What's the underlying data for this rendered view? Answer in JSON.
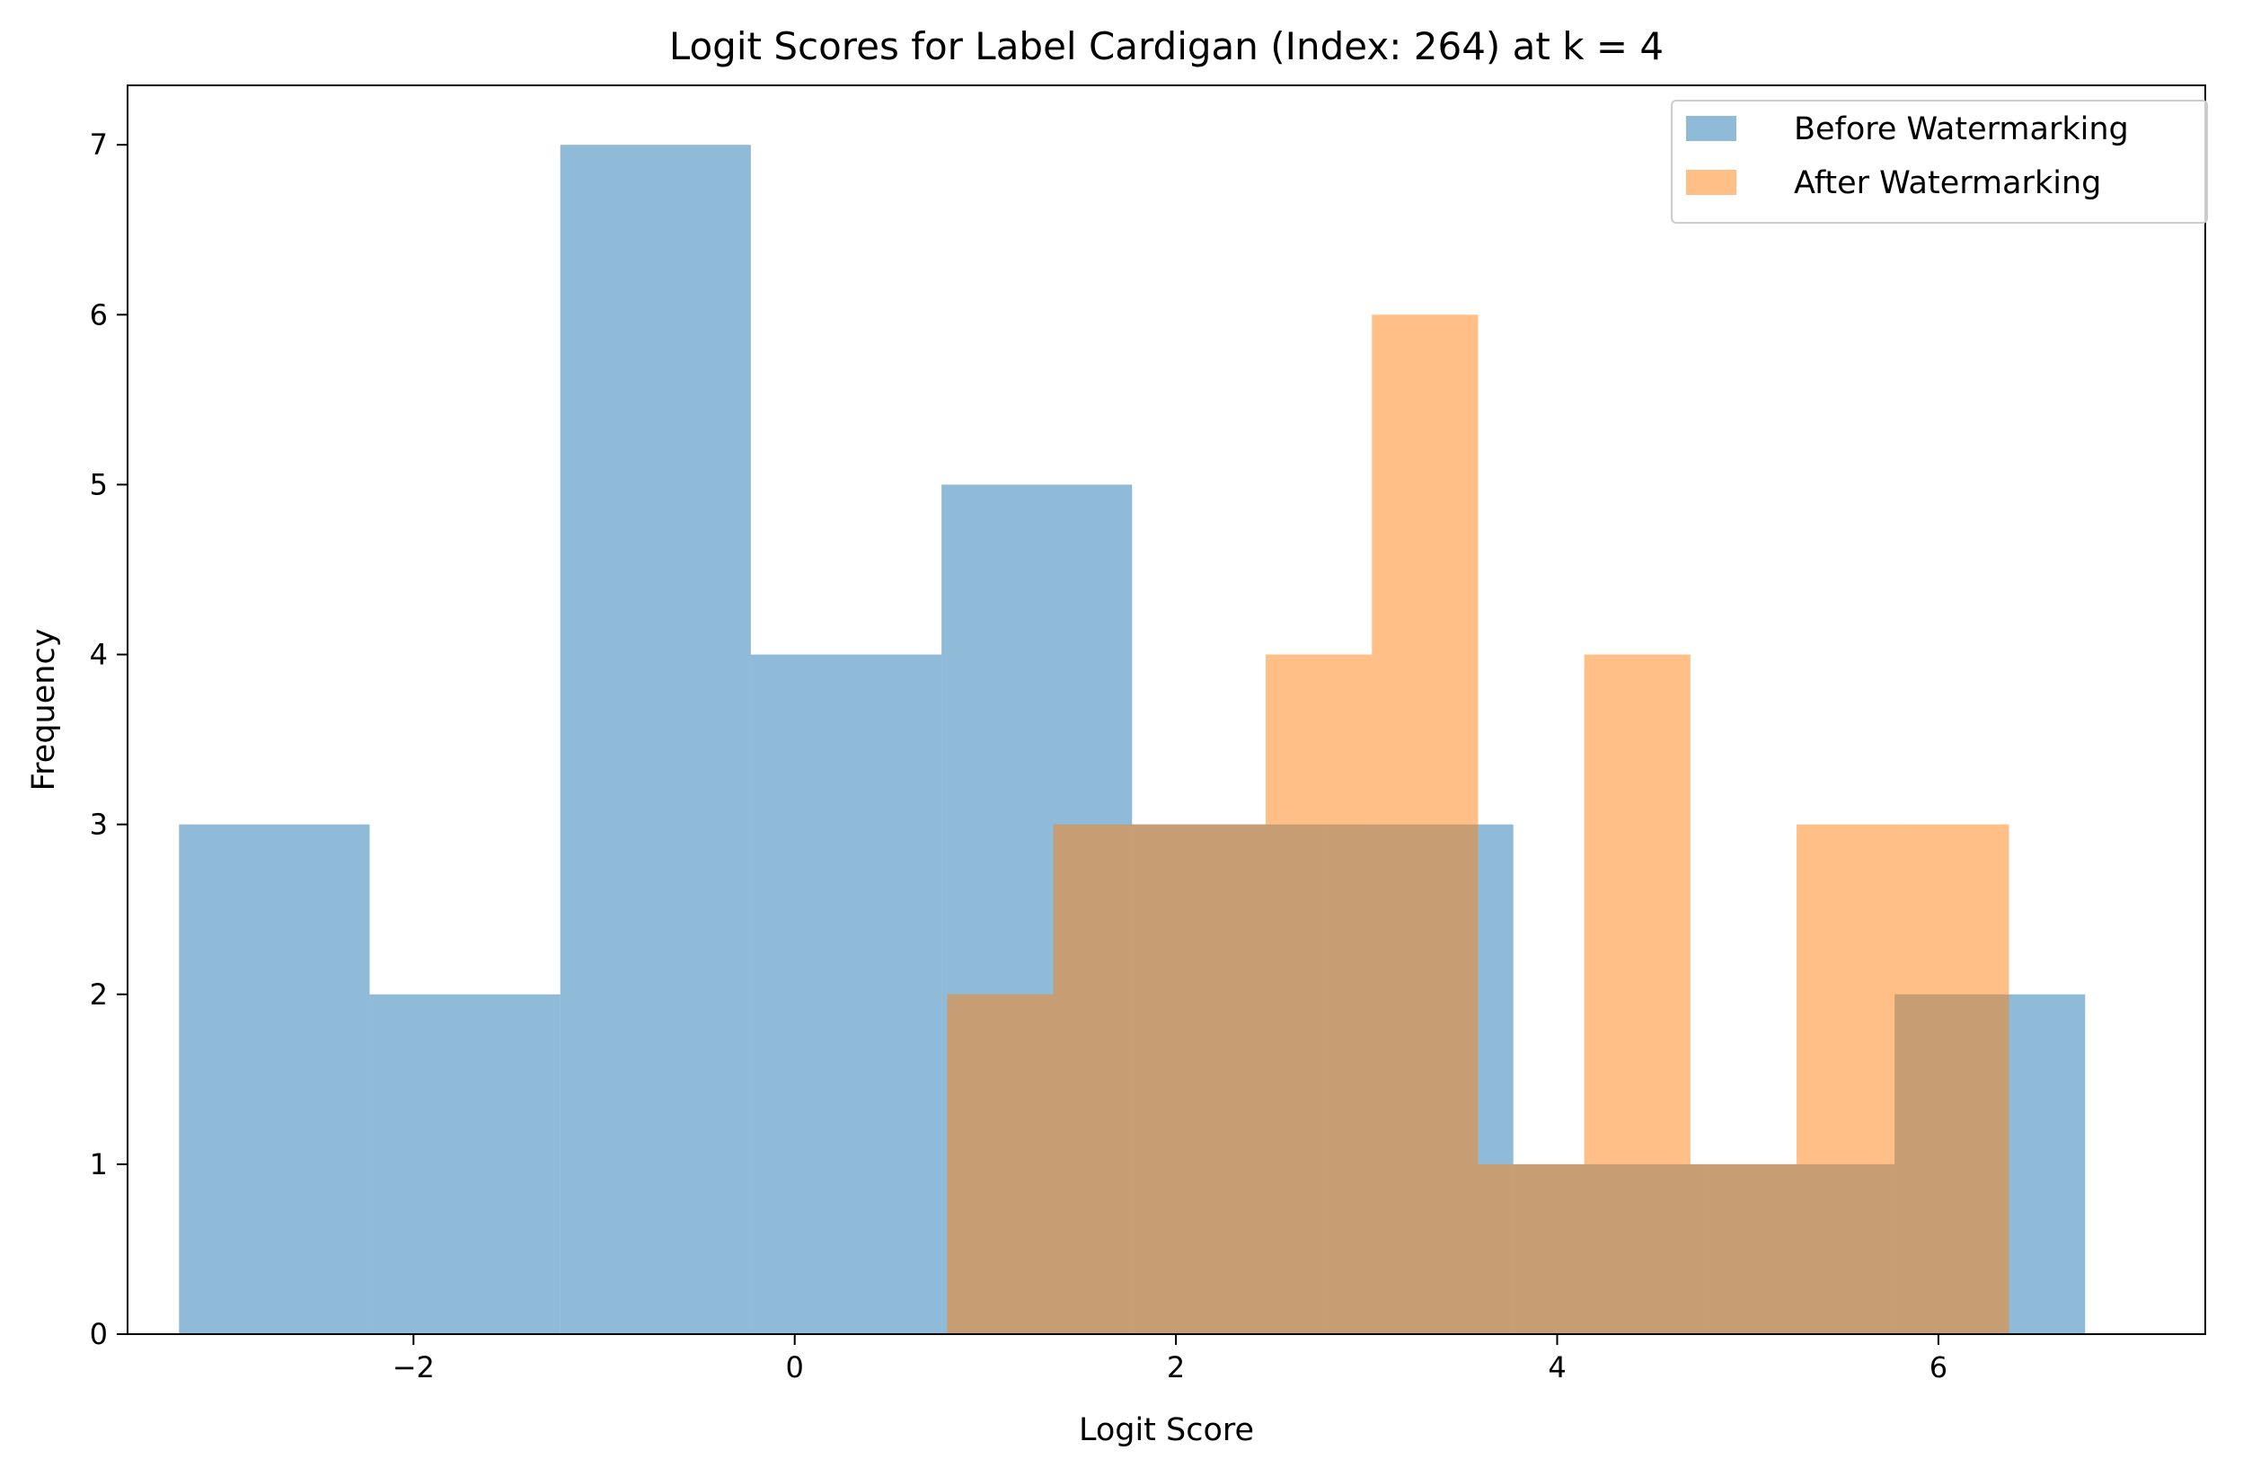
{
  "chart_data": {
    "type": "histogram",
    "title": "Logit Scores for Label Cardigan (Index: 264) at k = 4",
    "xlabel": "Logit Score",
    "ylabel": "Frequency",
    "xlim": [
      -3.5,
      7.4
    ],
    "ylim": [
      0,
      7.35
    ],
    "xticks": [
      -2,
      0,
      2,
      4,
      6
    ],
    "xtick_labels": [
      "−2",
      "0",
      "2",
      "4",
      "6"
    ],
    "yticks": [
      0,
      1,
      2,
      3,
      4,
      5,
      6,
      7
    ],
    "ytick_labels": [
      "0",
      "1",
      "2",
      "3",
      "4",
      "5",
      "6",
      "7"
    ],
    "grid": false,
    "legend_position": "top-right",
    "series": [
      {
        "name": "Before Watermarking",
        "color": "#1f77b4",
        "alpha": 0.5,
        "bin_edges": [
          -3.23,
          -2.23,
          -1.23,
          -0.23,
          0.77,
          1.77,
          2.77,
          3.77,
          4.77,
          5.77,
          6.77
        ],
        "counts": [
          3,
          2,
          7,
          4,
          5,
          3,
          3,
          1,
          1,
          2
        ]
      },
      {
        "name": "After Watermarking",
        "color": "#ff7f0e",
        "alpha": 0.5,
        "bin_edges": [
          0.8,
          1.357,
          1.914,
          2.471,
          3.028,
          3.585,
          4.142,
          4.699,
          5.256,
          5.813,
          6.37
        ],
        "counts": [
          2,
          3,
          3,
          4,
          6,
          1,
          4,
          1,
          3,
          3
        ]
      }
    ]
  }
}
